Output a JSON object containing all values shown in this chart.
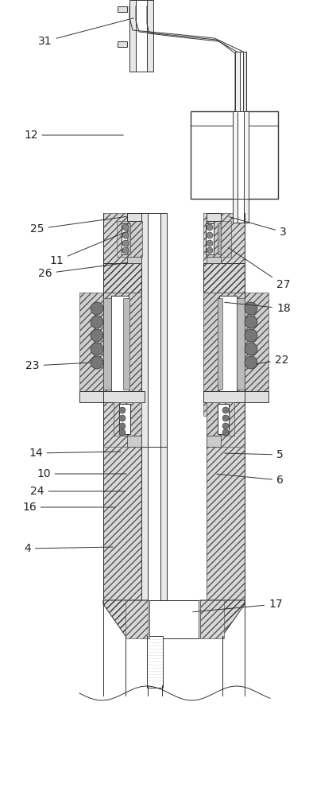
{
  "bg_color": "#ffffff",
  "line_color": "#333333",
  "label_fontsize": 10
}
